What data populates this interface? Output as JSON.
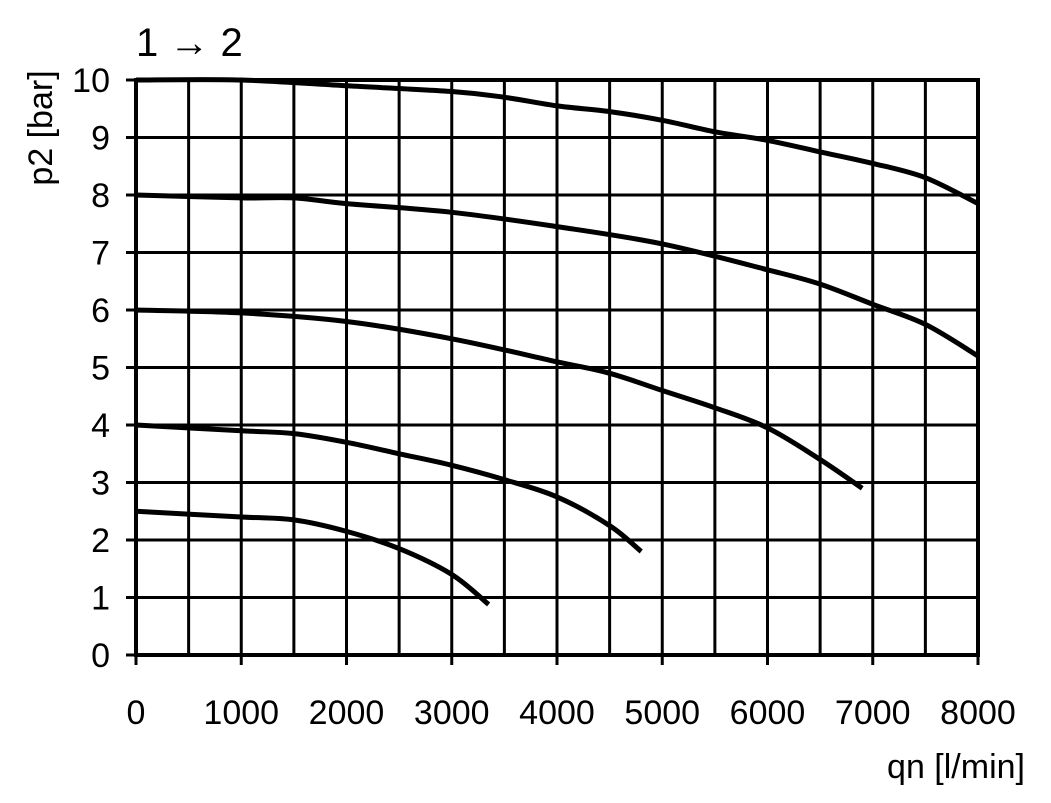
{
  "chart_data": {
    "type": "line",
    "title": "1 → 2",
    "xlabel": "qn [l/min]",
    "ylabel": "p2 [bar]",
    "xlim": [
      0,
      8000
    ],
    "ylim": [
      0,
      10
    ],
    "x_ticks": [
      "0",
      "1000",
      "2000",
      "3000",
      "4000",
      "5000",
      "6000",
      "7000",
      "8000"
    ],
    "y_ticks": [
      "0",
      "1",
      "2",
      "3",
      "4",
      "5",
      "6",
      "7",
      "8",
      "9",
      "10"
    ],
    "grid": true,
    "x_grid_step": 500,
    "y_grid_step": 1,
    "legend": "none",
    "series": [
      {
        "x": [
          0,
          1000,
          2000,
          3000,
          3500,
          4000,
          4500,
          5000,
          5500,
          6000,
          6500,
          7000,
          7500,
          8000
        ],
        "y": [
          10.0,
          10.0,
          9.9,
          9.8,
          9.7,
          9.55,
          9.45,
          9.3,
          9.1,
          8.95,
          8.75,
          8.55,
          8.3,
          7.85
        ]
      },
      {
        "x": [
          0,
          1000,
          1500,
          2000,
          3000,
          4000,
          5000,
          6000,
          6500,
          7000,
          7500,
          8000
        ],
        "y": [
          8.0,
          7.95,
          7.95,
          7.85,
          7.7,
          7.45,
          7.15,
          6.7,
          6.45,
          6.1,
          5.75,
          5.2
        ]
      },
      {
        "x": [
          0,
          1000,
          2000,
          3000,
          4000,
          4500,
          5000,
          5500,
          6000,
          6500,
          6900
        ],
        "y": [
          6.0,
          5.95,
          5.8,
          5.5,
          5.1,
          4.9,
          4.6,
          4.3,
          3.95,
          3.4,
          2.9
        ]
      },
      {
        "x": [
          0,
          1000,
          1500,
          2000,
          2500,
          3000,
          3500,
          4000,
          4500,
          4800
        ],
        "y": [
          4.0,
          3.9,
          3.85,
          3.7,
          3.5,
          3.3,
          3.05,
          2.75,
          2.25,
          1.8
        ]
      },
      {
        "x": [
          0,
          1000,
          1500,
          2000,
          2500,
          3000,
          3350
        ],
        "y": [
          2.5,
          2.4,
          2.35,
          2.15,
          1.85,
          1.4,
          0.88
        ]
      }
    ]
  }
}
